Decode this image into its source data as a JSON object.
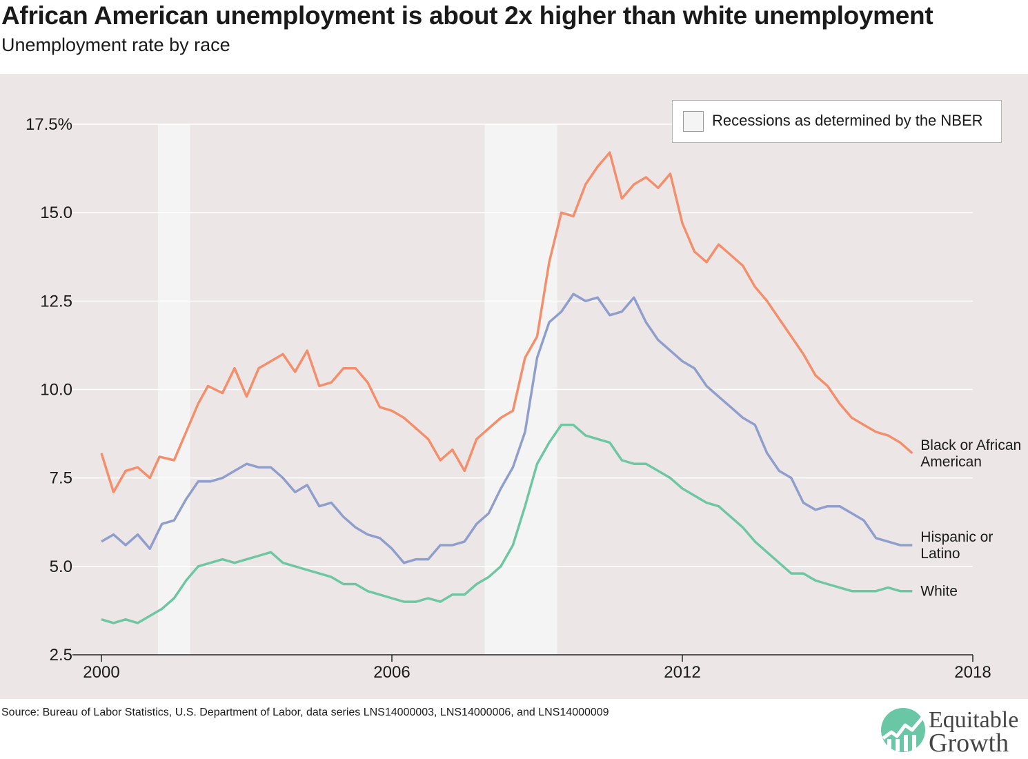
{
  "header": {
    "title": "African American unemployment is about 2x higher than white unemployment",
    "subtitle": "Unemployment rate by race"
  },
  "legend": {
    "recession_label": "Recessions as determined by the NBER"
  },
  "source": "Source: Bureau of Labor Statistics, U.S. Department of Labor, data series LNS14000003, LNS14000006, and LNS14000009",
  "logo": {
    "line1": "Equitable",
    "line2": "Growth",
    "colors": [
      "#6ac7a6",
      "#4fa98a"
    ]
  },
  "chart_data": {
    "type": "line",
    "title": "African American unemployment is about 2x higher than white unemployment",
    "subtitle": "Unemployment rate by race",
    "x_axis": {
      "range": [
        "2000-01",
        "2018-01"
      ],
      "ticks": [
        "2000",
        "2006",
        "2012",
        "2018"
      ]
    },
    "y_axis": {
      "range": [
        2.5,
        17.5
      ],
      "ticks": [
        "2.5",
        "5.0",
        "7.5",
        "10.0",
        "12.5",
        "15.0",
        "17.5%"
      ]
    },
    "grid": "horizontal",
    "legend_position": "top-right",
    "recessions": [
      {
        "start": "2001-03",
        "end": "2001-11"
      },
      {
        "start": "2007-12",
        "end": "2009-06"
      }
    ],
    "series": [
      {
        "name": "Black or African American",
        "label_lines": [
          "Black or African",
          "American"
        ],
        "color": "#f58e6b",
        "points": [
          [
            2000.0,
            8.2
          ],
          [
            2000.25,
            7.1
          ],
          [
            2000.5,
            7.7
          ],
          [
            2000.75,
            7.8
          ],
          [
            2001.0,
            7.5
          ],
          [
            2001.2,
            8.1
          ],
          [
            2001.5,
            8.0
          ],
          [
            2001.75,
            8.8
          ],
          [
            2002.0,
            9.6
          ],
          [
            2002.2,
            10.1
          ],
          [
            2002.5,
            9.9
          ],
          [
            2002.75,
            10.6
          ],
          [
            2003.0,
            9.8
          ],
          [
            2003.25,
            10.6
          ],
          [
            2003.5,
            10.8
          ],
          [
            2003.75,
            11.0
          ],
          [
            2004.0,
            10.5
          ],
          [
            2004.25,
            11.1
          ],
          [
            2004.5,
            10.1
          ],
          [
            2004.75,
            10.2
          ],
          [
            2005.0,
            10.6
          ],
          [
            2005.25,
            10.6
          ],
          [
            2005.5,
            10.2
          ],
          [
            2005.75,
            9.5
          ],
          [
            2006.0,
            9.4
          ],
          [
            2006.25,
            9.2
          ],
          [
            2006.5,
            8.9
          ],
          [
            2006.75,
            8.6
          ],
          [
            2007.0,
            8.0
          ],
          [
            2007.25,
            8.3
          ],
          [
            2007.5,
            7.7
          ],
          [
            2007.75,
            8.6
          ],
          [
            2008.0,
            8.9
          ],
          [
            2008.25,
            9.2
          ],
          [
            2008.5,
            9.4
          ],
          [
            2008.75,
            10.9
          ],
          [
            2009.0,
            11.5
          ],
          [
            2009.25,
            13.6
          ],
          [
            2009.5,
            15.0
          ],
          [
            2009.75,
            14.9
          ],
          [
            2010.0,
            15.8
          ],
          [
            2010.25,
            16.3
          ],
          [
            2010.5,
            16.7
          ],
          [
            2010.75,
            15.4
          ],
          [
            2011.0,
            15.8
          ],
          [
            2011.25,
            16.0
          ],
          [
            2011.5,
            15.7
          ],
          [
            2011.75,
            16.1
          ],
          [
            2012.0,
            14.7
          ],
          [
            2012.25,
            13.9
          ],
          [
            2012.5,
            13.6
          ],
          [
            2012.75,
            14.1
          ],
          [
            2013.0,
            13.8
          ],
          [
            2013.25,
            13.5
          ],
          [
            2013.5,
            12.9
          ],
          [
            2013.75,
            12.5
          ],
          [
            2014.0,
            12.0
          ],
          [
            2014.25,
            11.5
          ],
          [
            2014.5,
            11.0
          ],
          [
            2014.75,
            10.4
          ],
          [
            2015.0,
            10.1
          ],
          [
            2015.25,
            9.6
          ],
          [
            2015.5,
            9.2
          ],
          [
            2015.75,
            9.0
          ],
          [
            2016.0,
            8.8
          ],
          [
            2016.25,
            8.7
          ],
          [
            2016.5,
            8.5
          ],
          [
            2016.75,
            8.2
          ]
        ]
      },
      {
        "name": "Hispanic or Latino",
        "label_lines": [
          "Hispanic or",
          "Latino"
        ],
        "color": "#8f9ecc",
        "points": [
          [
            2000.0,
            5.7
          ],
          [
            2000.25,
            5.9
          ],
          [
            2000.5,
            5.6
          ],
          [
            2000.75,
            5.9
          ],
          [
            2001.0,
            5.5
          ],
          [
            2001.25,
            6.2
          ],
          [
            2001.5,
            6.3
          ],
          [
            2001.75,
            6.9
          ],
          [
            2002.0,
            7.4
          ],
          [
            2002.25,
            7.4
          ],
          [
            2002.5,
            7.5
          ],
          [
            2002.75,
            7.7
          ],
          [
            2003.0,
            7.9
          ],
          [
            2003.25,
            7.8
          ],
          [
            2003.5,
            7.8
          ],
          [
            2003.75,
            7.5
          ],
          [
            2004.0,
            7.1
          ],
          [
            2004.25,
            7.3
          ],
          [
            2004.5,
            6.7
          ],
          [
            2004.75,
            6.8
          ],
          [
            2005.0,
            6.4
          ],
          [
            2005.25,
            6.1
          ],
          [
            2005.5,
            5.9
          ],
          [
            2005.75,
            5.8
          ],
          [
            2006.0,
            5.5
          ],
          [
            2006.25,
            5.1
          ],
          [
            2006.5,
            5.2
          ],
          [
            2006.75,
            5.2
          ],
          [
            2007.0,
            5.6
          ],
          [
            2007.25,
            5.6
          ],
          [
            2007.5,
            5.7
          ],
          [
            2007.75,
            6.2
          ],
          [
            2008.0,
            6.5
          ],
          [
            2008.25,
            7.2
          ],
          [
            2008.5,
            7.8
          ],
          [
            2008.75,
            8.8
          ],
          [
            2009.0,
            10.9
          ],
          [
            2009.25,
            11.9
          ],
          [
            2009.5,
            12.2
          ],
          [
            2009.75,
            12.7
          ],
          [
            2010.0,
            12.5
          ],
          [
            2010.25,
            12.6
          ],
          [
            2010.5,
            12.1
          ],
          [
            2010.75,
            12.2
          ],
          [
            2011.0,
            12.6
          ],
          [
            2011.25,
            11.9
          ],
          [
            2011.5,
            11.4
          ],
          [
            2011.75,
            11.1
          ],
          [
            2012.0,
            10.8
          ],
          [
            2012.25,
            10.6
          ],
          [
            2012.5,
            10.1
          ],
          [
            2012.75,
            9.8
          ],
          [
            2013.0,
            9.5
          ],
          [
            2013.25,
            9.2
          ],
          [
            2013.5,
            9.0
          ],
          [
            2013.75,
            8.2
          ],
          [
            2014.0,
            7.7
          ],
          [
            2014.25,
            7.5
          ],
          [
            2014.5,
            6.8
          ],
          [
            2014.75,
            6.6
          ],
          [
            2015.0,
            6.7
          ],
          [
            2015.25,
            6.7
          ],
          [
            2015.5,
            6.5
          ],
          [
            2015.75,
            6.3
          ],
          [
            2016.0,
            5.8
          ],
          [
            2016.25,
            5.7
          ],
          [
            2016.5,
            5.6
          ],
          [
            2016.75,
            5.6
          ]
        ]
      },
      {
        "name": "White",
        "label_lines": [
          "White"
        ],
        "color": "#6ec7a2",
        "points": [
          [
            2000.0,
            3.5
          ],
          [
            2000.25,
            3.4
          ],
          [
            2000.5,
            3.5
          ],
          [
            2000.75,
            3.4
          ],
          [
            2001.0,
            3.6
          ],
          [
            2001.25,
            3.8
          ],
          [
            2001.5,
            4.1
          ],
          [
            2001.75,
            4.6
          ],
          [
            2002.0,
            5.0
          ],
          [
            2002.25,
            5.1
          ],
          [
            2002.5,
            5.2
          ],
          [
            2002.75,
            5.1
          ],
          [
            2003.0,
            5.2
          ],
          [
            2003.25,
            5.3
          ],
          [
            2003.5,
            5.4
          ],
          [
            2003.75,
            5.1
          ],
          [
            2004.0,
            5.0
          ],
          [
            2004.25,
            4.9
          ],
          [
            2004.5,
            4.8
          ],
          [
            2004.75,
            4.7
          ],
          [
            2005.0,
            4.5
          ],
          [
            2005.25,
            4.5
          ],
          [
            2005.5,
            4.3
          ],
          [
            2005.75,
            4.2
          ],
          [
            2006.0,
            4.1
          ],
          [
            2006.25,
            4.0
          ],
          [
            2006.5,
            4.0
          ],
          [
            2006.75,
            4.1
          ],
          [
            2007.0,
            4.0
          ],
          [
            2007.25,
            4.2
          ],
          [
            2007.5,
            4.2
          ],
          [
            2007.75,
            4.5
          ],
          [
            2008.0,
            4.7
          ],
          [
            2008.25,
            5.0
          ],
          [
            2008.5,
            5.6
          ],
          [
            2008.75,
            6.7
          ],
          [
            2009.0,
            7.9
          ],
          [
            2009.25,
            8.5
          ],
          [
            2009.5,
            9.0
          ],
          [
            2009.75,
            9.0
          ],
          [
            2010.0,
            8.7
          ],
          [
            2010.25,
            8.6
          ],
          [
            2010.5,
            8.5
          ],
          [
            2010.75,
            8.0
          ],
          [
            2011.0,
            7.9
          ],
          [
            2011.25,
            7.9
          ],
          [
            2011.5,
            7.7
          ],
          [
            2011.75,
            7.5
          ],
          [
            2012.0,
            7.2
          ],
          [
            2012.25,
            7.0
          ],
          [
            2012.5,
            6.8
          ],
          [
            2012.75,
            6.7
          ],
          [
            2013.0,
            6.4
          ],
          [
            2013.25,
            6.1
          ],
          [
            2013.5,
            5.7
          ],
          [
            2013.75,
            5.4
          ],
          [
            2014.0,
            5.1
          ],
          [
            2014.25,
            4.8
          ],
          [
            2014.5,
            4.8
          ],
          [
            2014.75,
            4.6
          ],
          [
            2015.0,
            4.5
          ],
          [
            2015.25,
            4.4
          ],
          [
            2015.5,
            4.3
          ],
          [
            2015.75,
            4.3
          ],
          [
            2016.0,
            4.3
          ],
          [
            2016.25,
            4.4
          ],
          [
            2016.5,
            4.3
          ],
          [
            2016.75,
            4.3
          ]
        ]
      }
    ]
  }
}
